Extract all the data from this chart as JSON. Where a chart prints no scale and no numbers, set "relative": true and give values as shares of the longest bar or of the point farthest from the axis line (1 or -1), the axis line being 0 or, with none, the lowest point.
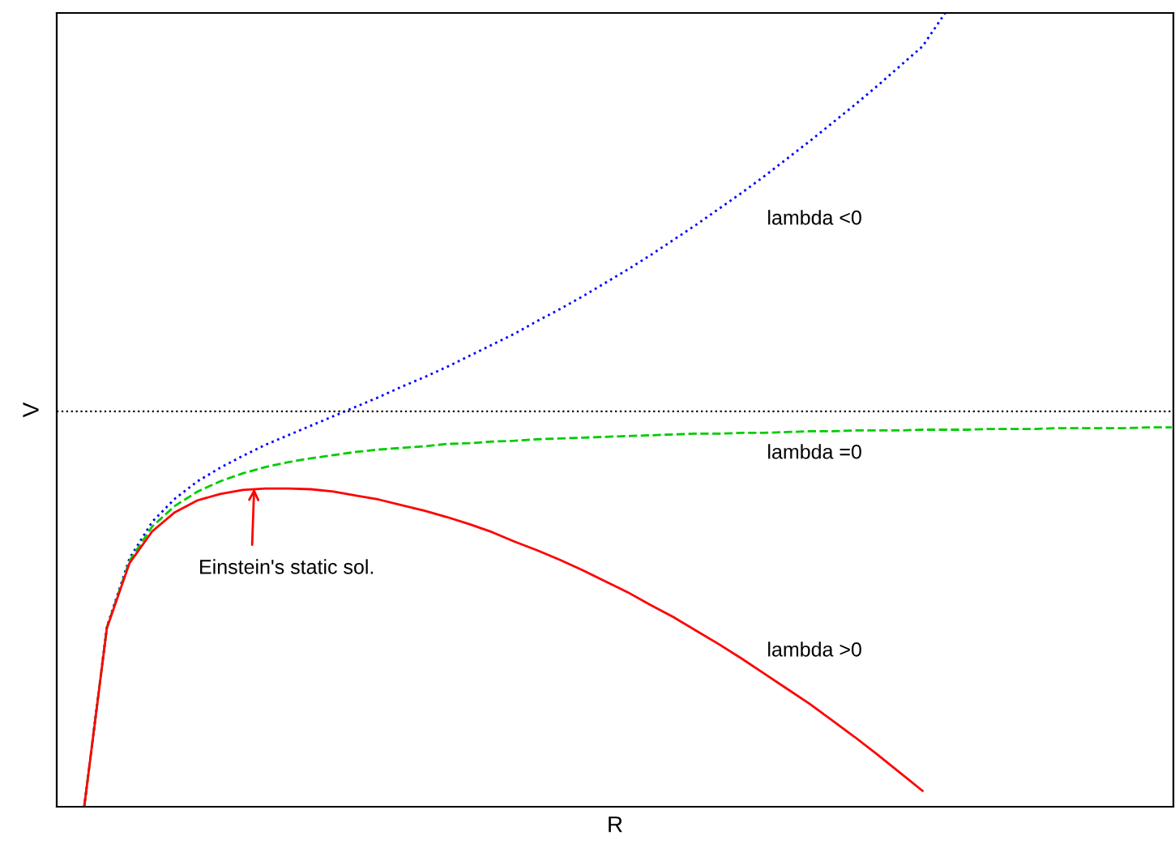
{
  "chart_data": {
    "type": "line",
    "relative": true,
    "xlabel": "R",
    "ylabel": "V",
    "categories": [
      null,
      null,
      null,
      null,
      null,
      null,
      null,
      null,
      null,
      null,
      null,
      null,
      null,
      null,
      null,
      null,
      null,
      null,
      null,
      null,
      null,
      null,
      null,
      null,
      null,
      null,
      null,
      null,
      null,
      null,
      null,
      null,
      null,
      null,
      null,
      null,
      null,
      null,
      null,
      null,
      null,
      null,
      null,
      null,
      null,
      null,
      null,
      null,
      null
    ],
    "series": [
      {
        "color": "#0000ff",
        "line_style": "dotted",
        "values": [
          0,
          0.227,
          0.313,
          0.359,
          0.388,
          0.41,
          0.427,
          0.442,
          0.456,
          0.468,
          0.48,
          0.492,
          0.504,
          0.516,
          0.529,
          0.541,
          0.554,
          0.568,
          0.582,
          0.596,
          0.612,
          0.627,
          0.643,
          0.66,
          0.677,
          0.695,
          0.714,
          0.733,
          0.753,
          0.773,
          0.794,
          0.816,
          0.838,
          0.861,
          0.884,
          0.908,
          0.933,
          0.958,
          1,
          null,
          null,
          null,
          null,
          null,
          null,
          null,
          null,
          null,
          null
        ]
      },
      {
        "color": "#00cc00",
        "line_style": "dashed",
        "values": [
          0,
          0.226,
          0.31,
          0.353,
          0.379,
          0.397,
          0.41,
          0.42,
          0.428,
          0.434,
          0.439,
          0.443,
          0.447,
          0.45,
          0.452,
          0.454,
          0.457,
          0.458,
          0.46,
          0.461,
          0.463,
          0.464,
          0.465,
          0.466,
          0.467,
          0.468,
          0.469,
          0.47,
          0.47,
          0.471,
          0.471,
          0.472,
          0.473,
          0.473,
          0.474,
          0.474,
          0.474,
          0.475,
          0.475,
          0.475,
          0.476,
          0.476,
          0.476,
          0.477,
          0.477,
          0.477,
          0.477,
          0.478,
          0.478
        ]
      },
      {
        "color": "#ff0000",
        "line_style": "solid",
        "values": [
          0,
          0.225,
          0.307,
          0.347,
          0.371,
          0.386,
          0.394,
          0.399,
          0.401,
          0.401,
          0.4,
          0.397,
          0.392,
          0.387,
          0.38,
          0.373,
          0.365,
          0.356,
          0.346,
          0.334,
          0.323,
          0.311,
          0.298,
          0.284,
          0.27,
          0.254,
          0.239,
          0.222,
          0.205,
          0.187,
          0.168,
          0.149,
          0.13,
          0.109,
          0.088,
          0.066,
          0.043,
          0.02,
          null,
          null,
          null,
          null,
          null,
          null,
          null,
          null,
          null,
          null,
          null
        ]
      }
    ],
    "ref_lines": [
      {
        "axis": "y",
        "value": 0.498,
        "color": "#000000",
        "line_style": "dotted"
      }
    ],
    "annotations": [
      "lambda <0",
      "lambda =0",
      "lambda >0",
      "Einstein's static sol."
    ],
    "legend": false
  }
}
